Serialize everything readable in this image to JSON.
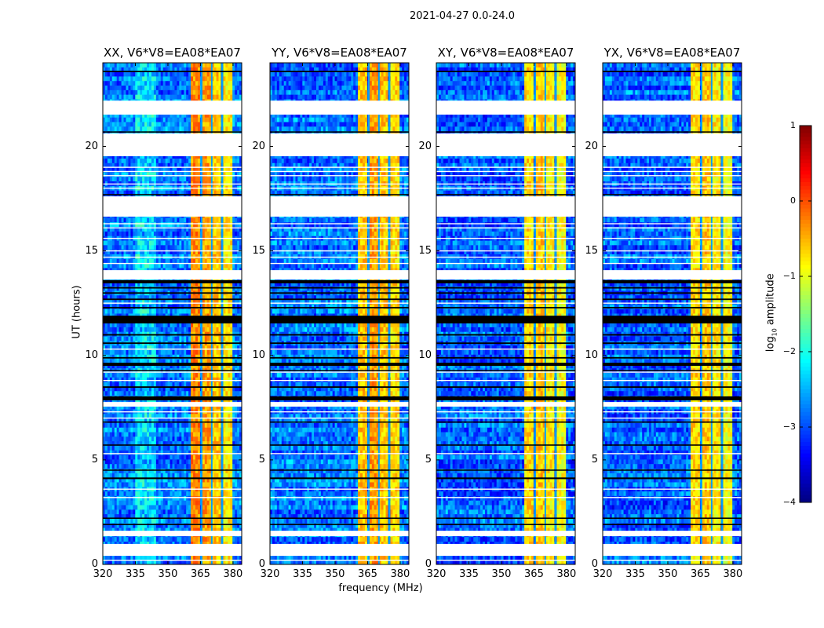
{
  "chart_data": {
    "type": "heatmap",
    "title": "2021-04-27 0.0-24.0",
    "xlabel": "frequency (MHz)",
    "ylabel": "UT (hours)",
    "xlim": [
      320,
      384
    ],
    "ylim": [
      0,
      24
    ],
    "xticks": [
      "320",
      "335",
      "350",
      "365",
      "380"
    ],
    "xtick_values": [
      320,
      335,
      350,
      365,
      380
    ],
    "yticks": [
      "0",
      "5",
      "10",
      "15",
      "20"
    ],
    "ytick_values": [
      0,
      5,
      10,
      15,
      20
    ],
    "panels": [
      {
        "title": "XX, V6*V8=EA08*EA07",
        "background_level": -2.8,
        "band_levels": [
          -0.3,
          -0.4,
          -0.6,
          -0.8
        ]
      },
      {
        "title": "YY, V6*V8=EA08*EA07",
        "background_level": -2.8,
        "band_levels": [
          -0.6,
          -0.4,
          -0.6,
          -0.7
        ]
      },
      {
        "title": "XY, V6*V8=EA08*EA07",
        "background_level": -2.9,
        "band_levels": [
          -0.7,
          -0.6,
          -0.8,
          -0.9
        ]
      },
      {
        "title": "YX, V6*V8=EA08*EA07",
        "background_level": -2.9,
        "band_levels": [
          -0.7,
          -0.6,
          -0.8,
          -0.9
        ]
      }
    ],
    "rfi_bands_mhz": [
      [
        360.4,
        365.3
      ],
      [
        365.7,
        370.0
      ],
      [
        370.4,
        374.8
      ],
      [
        375.2,
        380.0
      ]
    ],
    "data_gaps_hours": [
      [
        21.52,
        22.19
      ],
      [
        19.53,
        20.62
      ],
      [
        16.64,
        17.61
      ],
      [
        13.63,
        14.08
      ],
      [
        7.55,
        7.77
      ],
      [
        1.35,
        1.61
      ],
      [
        0.41,
        0.98
      ]
    ],
    "flagged_rows_hours": [
      [
        23.55,
        23.62
      ],
      [
        20.66,
        20.72
      ],
      [
        17.66,
        17.72
      ],
      [
        13.45,
        13.6
      ],
      [
        13.2,
        13.27
      ],
      [
        12.95,
        13.02
      ],
      [
        12.65,
        12.72
      ],
      [
        12.25,
        12.32
      ],
      [
        11.53,
        11.9
      ],
      [
        10.95,
        11.02
      ],
      [
        10.55,
        10.62
      ],
      [
        9.85,
        9.92
      ],
      [
        9.5,
        9.65
      ],
      [
        9.25,
        9.3
      ],
      [
        8.45,
        8.52
      ],
      [
        7.85,
        8.04
      ],
      [
        6.78,
        6.84
      ],
      [
        5.68,
        5.74
      ],
      [
        4.48,
        4.54
      ],
      [
        4.08,
        4.16
      ],
      [
        2.18,
        2.24
      ],
      [
        1.88,
        1.94
      ]
    ],
    "white_lines_hours": [
      19.0,
      18.8,
      18.6,
      18.2,
      18.0,
      16.3,
      16.1,
      15.6,
      15.0,
      14.7,
      14.4,
      12.5,
      10.3,
      9.2,
      8.8,
      7.3,
      7.0,
      5.3,
      3.6,
      3.2,
      0.2
    ],
    "colorbar": {
      "label_main": "log",
      "label_sub": "10",
      "label_rest": " amplitude",
      "range": [
        -4,
        1
      ],
      "ticks": [
        "1",
        "0",
        "−1",
        "−2",
        "−3",
        "−4"
      ],
      "tick_values": [
        1,
        0,
        -1,
        -2,
        -3,
        -4
      ],
      "colormap": "jet"
    }
  }
}
